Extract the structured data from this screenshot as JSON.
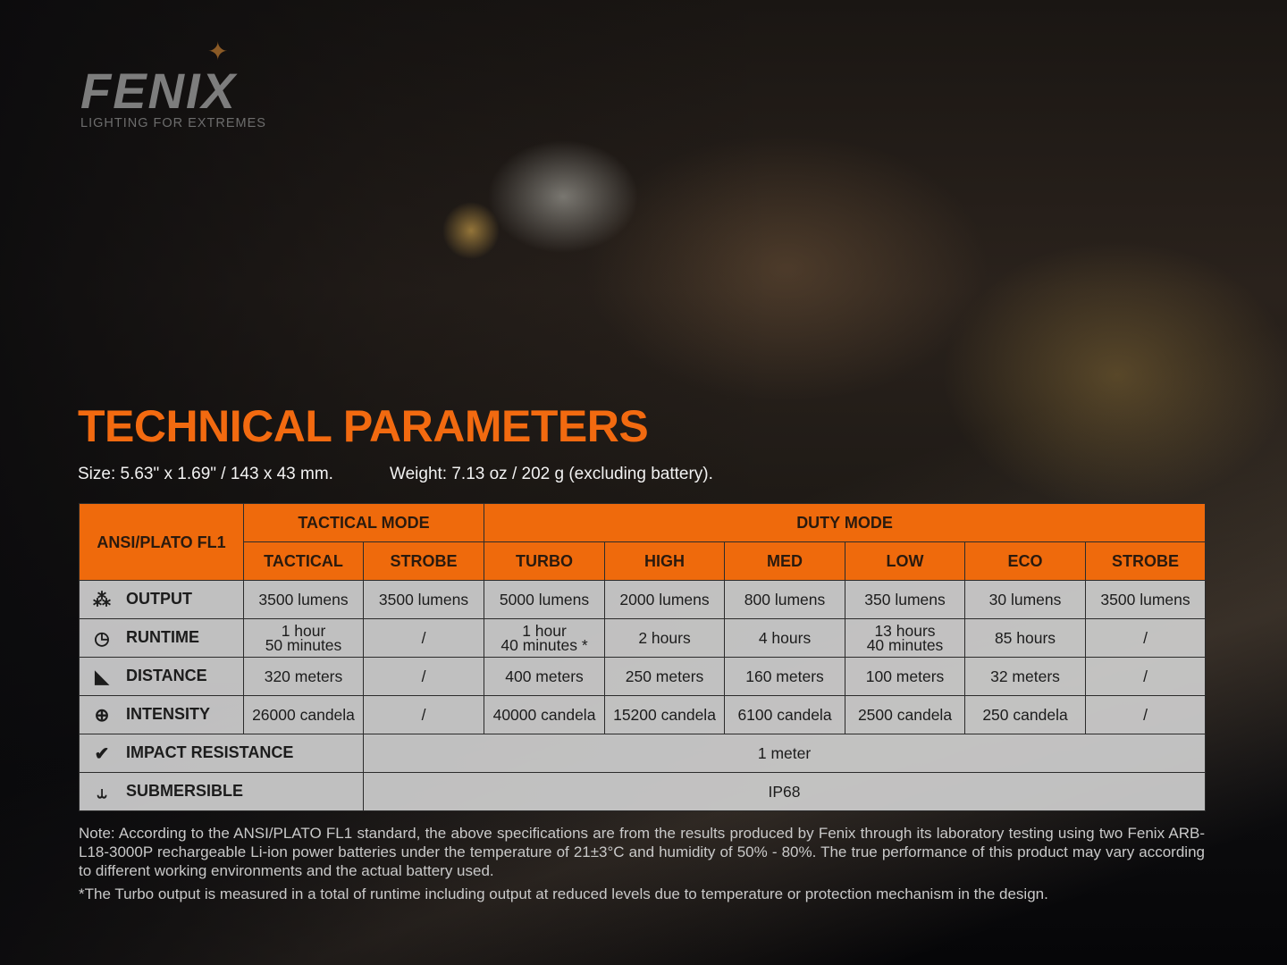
{
  "brand": {
    "name": "FENIX",
    "tagline": "LIGHTING FOR EXTREMES",
    "star_color": "#8b5a26"
  },
  "title": "TECHNICAL PARAMETERS",
  "size": "Size: 5.63\" x 1.69\" / 143 x 43 mm.",
  "weight": "Weight: 7.13 oz / 202 g (excluding battery).",
  "colors": {
    "accent": "#ef6a0c",
    "title": "#f26a10"
  },
  "table": {
    "corner": "ANSI/PLATO FL1",
    "groups": [
      "TACTICAL MODE",
      "DUTY MODE"
    ],
    "modes": [
      "TACTICAL",
      "STROBE",
      "TURBO",
      "HIGH",
      "MED",
      "LOW",
      "ECO",
      "STROBE"
    ],
    "rows": [
      {
        "label": "OUTPUT",
        "icon": "output-rays-icon",
        "cells": [
          "3500 lumens",
          "3500 lumens",
          "5000 lumens",
          "2000 lumens",
          "800 lumens",
          "350 lumens",
          "30 lumens",
          "3500 lumens"
        ]
      },
      {
        "label": "RUNTIME",
        "icon": "clock-icon",
        "cells": [
          "1 hour\n50 minutes",
          "/",
          "1 hour\n40 minutes *",
          "2 hours",
          "4 hours",
          "13 hours\n40 minutes",
          "85 hours",
          "/"
        ]
      },
      {
        "label": "DISTANCE",
        "icon": "beam-distance-icon",
        "cells": [
          "320 meters",
          "/",
          "400 meters",
          "250 meters",
          "160 meters",
          "100 meters",
          "32 meters",
          "/"
        ]
      },
      {
        "label": "INTENSITY",
        "icon": "target-icon",
        "cells": [
          "26000 candela",
          "/",
          "40000 candela",
          "15200 candela",
          "6100 candela",
          "2500 candela",
          "250 candela",
          "/"
        ]
      }
    ],
    "impact": {
      "label": "IMPACT RESISTANCE",
      "icon": "impact-icon",
      "value": "1 meter"
    },
    "submersible": {
      "label": "SUBMERSIBLE",
      "icon": "submersible-icon",
      "value": "IP68"
    }
  },
  "note": "Note: According to the ANSI/PLATO FL1 standard, the above specifications are from the results produced by Fenix through its laboratory testing using two Fenix ARB-L18-3000P rechargeable Li-ion power batteries under the temperature of 21±3°C and humidity of 50% - 80%. The true performance of this product may vary according to different working environments and the actual battery used.",
  "footnote": "*The Turbo output is measured in a total of runtime including output at reduced levels due to temperature or protection mechanism in the design."
}
